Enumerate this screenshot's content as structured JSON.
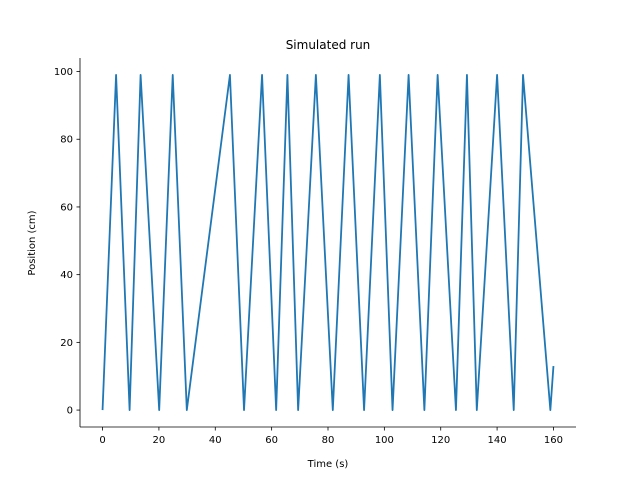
{
  "chart_data": {
    "type": "line",
    "title": "Simulated run",
    "xlabel": "Time (s)",
    "ylabel": "Position (cm)",
    "xlim": [
      -8,
      168
    ],
    "ylim": [
      -5,
      104
    ],
    "xticks": [
      0,
      20,
      40,
      60,
      80,
      100,
      120,
      140,
      160
    ],
    "yticks": [
      0,
      20,
      40,
      60,
      80,
      100
    ],
    "grid": false,
    "series": [
      {
        "color": "#1f77b4",
        "x": [
          0,
          4.8,
          9.6,
          13.5,
          20.1,
          24.9,
          29.9,
          45.2,
          50.2,
          56.6,
          61.6,
          65.6,
          69.4,
          75.7,
          81.7,
          87.3,
          92.8,
          98.4,
          102.9,
          108.6,
          114.2,
          118.9,
          125.4,
          129.3,
          132.8,
          140.0,
          145.9,
          149.2,
          158.9,
          160.0
        ],
        "y": [
          0,
          99,
          0,
          99,
          0,
          99,
          0,
          99,
          0,
          99,
          0,
          99,
          0,
          99,
          0,
          99,
          0,
          99,
          0,
          99,
          0,
          99,
          0,
          99,
          0,
          99,
          0,
          99,
          0,
          13
        ]
      }
    ]
  }
}
